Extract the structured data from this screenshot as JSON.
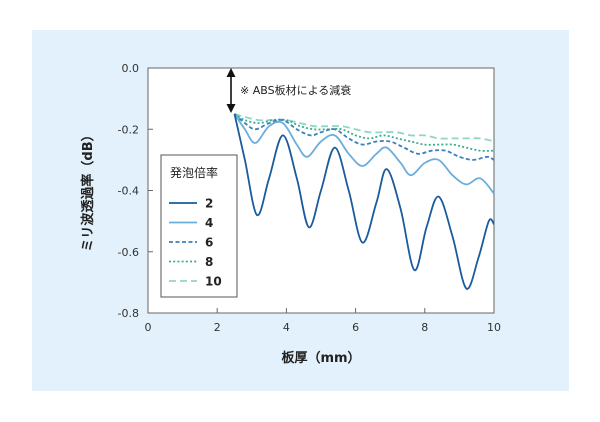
{
  "chart_data": {
    "type": "line",
    "xlabel": "板厚（mm）",
    "ylabel": "ミリ波透過率（dB）",
    "xlim": [
      0,
      10
    ],
    "ylim": [
      -0.8,
      0.0
    ],
    "x_ticks": [
      "0",
      "2",
      "4",
      "6",
      "8",
      "10"
    ],
    "y_ticks": [
      "0.0",
      "-0.2",
      "-0.4",
      "-0.6",
      "-0.8"
    ],
    "annotation": "※ ABS板材による減衰",
    "legend_title": "発泡倍率",
    "legend_position": "left-center",
    "grid": false,
    "series": [
      {
        "name": "2",
        "color": "#1a5b9c",
        "dash": "solid",
        "points": [
          [
            2.5,
            -0.15
          ],
          [
            2.8,
            -0.3
          ],
          [
            3.15,
            -0.48
          ],
          [
            3.5,
            -0.36
          ],
          [
            3.9,
            -0.22
          ],
          [
            4.3,
            -0.36
          ],
          [
            4.65,
            -0.52
          ],
          [
            5.0,
            -0.4
          ],
          [
            5.4,
            -0.26
          ],
          [
            5.8,
            -0.4
          ],
          [
            6.2,
            -0.57
          ],
          [
            6.6,
            -0.44
          ],
          [
            6.9,
            -0.33
          ],
          [
            7.3,
            -0.46
          ],
          [
            7.7,
            -0.66
          ],
          [
            8.05,
            -0.52
          ],
          [
            8.4,
            -0.42
          ],
          [
            8.8,
            -0.55
          ],
          [
            9.2,
            -0.72
          ],
          [
            9.55,
            -0.62
          ],
          [
            9.85,
            -0.5
          ],
          [
            10.0,
            -0.51
          ]
        ]
      },
      {
        "name": "4",
        "color": "#6aaedc",
        "dash": "solid",
        "points": [
          [
            2.5,
            -0.15
          ],
          [
            2.8,
            -0.2
          ],
          [
            3.1,
            -0.245
          ],
          [
            3.5,
            -0.19
          ],
          [
            3.9,
            -0.18
          ],
          [
            4.3,
            -0.25
          ],
          [
            4.6,
            -0.29
          ],
          [
            5.0,
            -0.24
          ],
          [
            5.4,
            -0.22
          ],
          [
            5.8,
            -0.28
          ],
          [
            6.2,
            -0.32
          ],
          [
            6.6,
            -0.28
          ],
          [
            6.9,
            -0.26
          ],
          [
            7.3,
            -0.31
          ],
          [
            7.6,
            -0.35
          ],
          [
            8.0,
            -0.31
          ],
          [
            8.4,
            -0.3
          ],
          [
            8.8,
            -0.35
          ],
          [
            9.2,
            -0.38
          ],
          [
            9.6,
            -0.36
          ],
          [
            10.0,
            -0.41
          ]
        ]
      },
      {
        "name": "6",
        "color": "#3d7fbf",
        "dash": "dashed",
        "points": [
          [
            2.5,
            -0.15
          ],
          [
            2.8,
            -0.18
          ],
          [
            3.1,
            -0.2
          ],
          [
            3.5,
            -0.18
          ],
          [
            3.9,
            -0.17
          ],
          [
            4.3,
            -0.2
          ],
          [
            4.7,
            -0.22
          ],
          [
            5.0,
            -0.21
          ],
          [
            5.4,
            -0.2
          ],
          [
            5.8,
            -0.23
          ],
          [
            6.2,
            -0.25
          ],
          [
            6.6,
            -0.24
          ],
          [
            7.0,
            -0.24
          ],
          [
            7.4,
            -0.26
          ],
          [
            7.8,
            -0.28
          ],
          [
            8.2,
            -0.27
          ],
          [
            8.6,
            -0.27
          ],
          [
            9.0,
            -0.29
          ],
          [
            9.4,
            -0.3
          ],
          [
            9.8,
            -0.29
          ],
          [
            10.0,
            -0.3
          ]
        ]
      },
      {
        "name": "8",
        "color": "#3aae8c",
        "dash": "dotted",
        "points": [
          [
            2.5,
            -0.15
          ],
          [
            2.8,
            -0.17
          ],
          [
            3.2,
            -0.18
          ],
          [
            3.6,
            -0.17
          ],
          [
            4.0,
            -0.17
          ],
          [
            4.4,
            -0.19
          ],
          [
            4.8,
            -0.2
          ],
          [
            5.2,
            -0.2
          ],
          [
            5.6,
            -0.2
          ],
          [
            6.0,
            -0.22
          ],
          [
            6.4,
            -0.23
          ],
          [
            6.8,
            -0.22
          ],
          [
            7.2,
            -0.23
          ],
          [
            7.6,
            -0.24
          ],
          [
            8.0,
            -0.25
          ],
          [
            8.4,
            -0.25
          ],
          [
            8.8,
            -0.25
          ],
          [
            9.2,
            -0.26
          ],
          [
            9.6,
            -0.27
          ],
          [
            10.0,
            -0.27
          ]
        ]
      },
      {
        "name": "10",
        "color": "#8fd6c9",
        "dash": "longdash",
        "points": [
          [
            2.5,
            -0.15
          ],
          [
            2.8,
            -0.16
          ],
          [
            3.2,
            -0.17
          ],
          [
            3.6,
            -0.17
          ],
          [
            4.0,
            -0.17
          ],
          [
            4.4,
            -0.18
          ],
          [
            4.8,
            -0.19
          ],
          [
            5.2,
            -0.19
          ],
          [
            5.6,
            -0.19
          ],
          [
            6.0,
            -0.2
          ],
          [
            6.4,
            -0.21
          ],
          [
            6.8,
            -0.21
          ],
          [
            7.2,
            -0.21
          ],
          [
            7.6,
            -0.22
          ],
          [
            8.0,
            -0.22
          ],
          [
            8.4,
            -0.23
          ],
          [
            8.8,
            -0.23
          ],
          [
            9.2,
            -0.23
          ],
          [
            9.6,
            -0.23
          ],
          [
            10.0,
            -0.24
          ]
        ]
      }
    ]
  }
}
